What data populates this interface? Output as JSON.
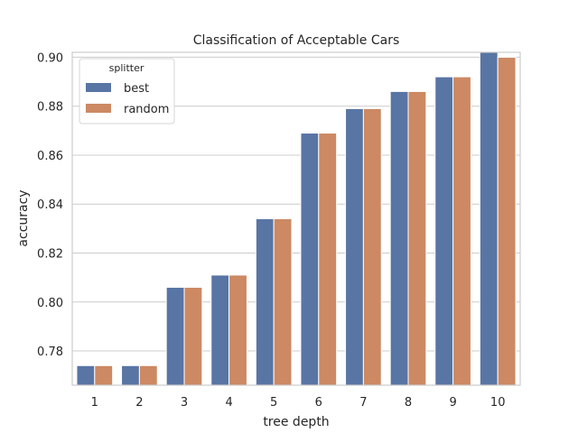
{
  "chart_data": {
    "type": "bar",
    "title": "Classification of Acceptable Cars",
    "xlabel": "tree depth",
    "ylabel": "accuracy",
    "categories": [
      "1",
      "2",
      "3",
      "4",
      "5",
      "6",
      "7",
      "8",
      "9",
      "10"
    ],
    "series": [
      {
        "name": "best",
        "color": "#5875a4",
        "values": [
          0.774,
          0.774,
          0.806,
          0.811,
          0.834,
          0.869,
          0.879,
          0.886,
          0.892,
          0.902
        ]
      },
      {
        "name": "random",
        "color": "#cc8963",
        "values": [
          0.774,
          0.774,
          0.806,
          0.811,
          0.834,
          0.869,
          0.879,
          0.886,
          0.892,
          0.9
        ]
      }
    ],
    "ylim": [
      0.766,
      0.902
    ],
    "yticks": [
      "0.78",
      "0.80",
      "0.82",
      "0.84",
      "0.86",
      "0.88",
      "0.90"
    ],
    "grid": true,
    "legend": {
      "title": "splitter",
      "placement": "top-left"
    }
  }
}
